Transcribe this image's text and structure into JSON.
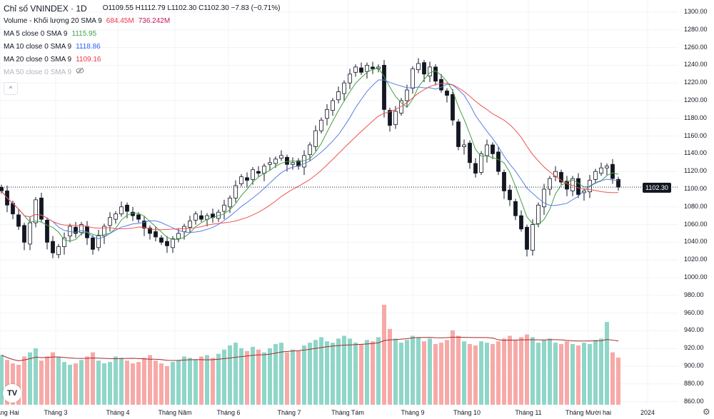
{
  "header": {
    "symbol_title": "Chỉ số VNINDEX · 1D",
    "open": "O1109.55",
    "high": "H1112.79",
    "low": "L1102.30",
    "close": "C1102.30",
    "change": "−7.83 (−0.71%)"
  },
  "indicators": [
    {
      "label": "Volume - Khối lượng 20 SMA 9",
      "values": [
        "684.45M",
        "736.242M"
      ],
      "colors": [
        "#f23645",
        "#c2185b"
      ]
    },
    {
      "label": "MA 5 close 0 SMA 9",
      "values": [
        "1115.95"
      ],
      "colors": [
        "#43a047"
      ]
    },
    {
      "label": "MA 10 close 0 SMA 9",
      "values": [
        "1118.86"
      ],
      "colors": [
        "#2962ff"
      ]
    },
    {
      "label": "MA 20 close 0 SMA 9",
      "values": [
        "1109.16"
      ],
      "colors": [
        "#f23645"
      ]
    },
    {
      "label": "MA 50 close 0 SMA 9",
      "values": [],
      "hidden": true
    }
  ],
  "collapse_label": "^",
  "last_price_label": "1102.30",
  "logo": "TV",
  "chart_data": {
    "type": "candlestick",
    "y_ticks": [
      "1300.00",
      "1280.00",
      "1260.00",
      "1240.00",
      "1220.00",
      "1200.00",
      "1180.00",
      "1160.00",
      "1140.00",
      "1120.00",
      "1100.00",
      "1080.00",
      "1060.00",
      "1040.00",
      "1020.00",
      "1000.00",
      "980.00",
      "960.00",
      "940.00",
      "920.00",
      "900.00",
      "880.00",
      "860.00"
    ],
    "x_labels": [
      "Tháng Hai",
      "Tháng 3",
      "Tháng 4",
      "Tháng Năm",
      "Tháng 6",
      "Tháng 7",
      "Tháng Tám",
      "Tháng 9",
      "Tháng 10",
      "Tháng 11",
      "Tháng Mười hai",
      "2024"
    ],
    "close": [
      1098,
      1082,
      1072,
      1058,
      1040,
      1062,
      1088,
      1066,
      1040,
      1028,
      1035,
      1045,
      1058,
      1050,
      1060,
      1045,
      1032,
      1048,
      1058,
      1068,
      1072,
      1080,
      1075,
      1070,
      1066,
      1056,
      1050,
      1046,
      1040,
      1036,
      1044,
      1050,
      1058,
      1064,
      1072,
      1066,
      1070,
      1068,
      1074,
      1082,
      1090,
      1104,
      1114,
      1110,
      1122,
      1118,
      1126,
      1130,
      1134,
      1138,
      1128,
      1130,
      1126,
      1138,
      1150,
      1166,
      1178,
      1190,
      1200,
      1210,
      1220,
      1230,
      1238,
      1232,
      1240,
      1236,
      1238,
      1190,
      1172,
      1188,
      1200,
      1212,
      1236,
      1242,
      1230,
      1238,
      1222,
      1212,
      1206,
      1178,
      1148,
      1150,
      1130,
      1118,
      1140,
      1150,
      1140,
      1120,
      1098,
      1088,
      1070,
      1055,
      1032,
      1060,
      1082,
      1100,
      1112,
      1120,
      1108,
      1100,
      1112,
      1094,
      1098,
      1110,
      1120,
      1124,
      1126,
      1112,
      1102.3
    ],
    "volume_m": [
      720,
      650,
      600,
      580,
      700,
      760,
      820,
      640,
      700,
      760,
      690,
      620,
      580,
      600,
      650,
      700,
      760,
      640,
      600,
      620,
      700,
      680,
      640,
      600,
      620,
      680,
      720,
      640,
      600,
      560,
      620,
      650,
      700,
      680,
      660,
      700,
      720,
      680,
      740,
      800,
      860,
      900,
      820,
      780,
      840,
      800,
      760,
      820,
      880,
      900,
      760,
      800,
      780,
      860,
      900,
      940,
      980,
      920,
      900,
      960,
      1000,
      960,
      900,
      880,
      940,
      920,
      980,
      1450,
      1100,
      960,
      900,
      940,
      1000,
      980,
      920,
      960,
      880,
      900,
      940,
      1080,
      1000,
      920,
      880,
      860,
      920,
      900,
      880,
      920,
      960,
      1000,
      940,
      980,
      1020,
      980,
      900,
      940,
      960,
      900,
      880,
      920,
      880,
      860,
      900,
      880,
      940,
      960,
      1200,
      760,
      684.45
    ],
    "price_range": [
      860,
      1300
    ]
  },
  "colors": {
    "up_vol": "#8fd6c8",
    "down_vol": "#f7a9a7",
    "ma5": "#43a047",
    "ma10": "#5b7fe0",
    "ma20": "#ef5350",
    "vol_sma": "#a52a2a"
  }
}
